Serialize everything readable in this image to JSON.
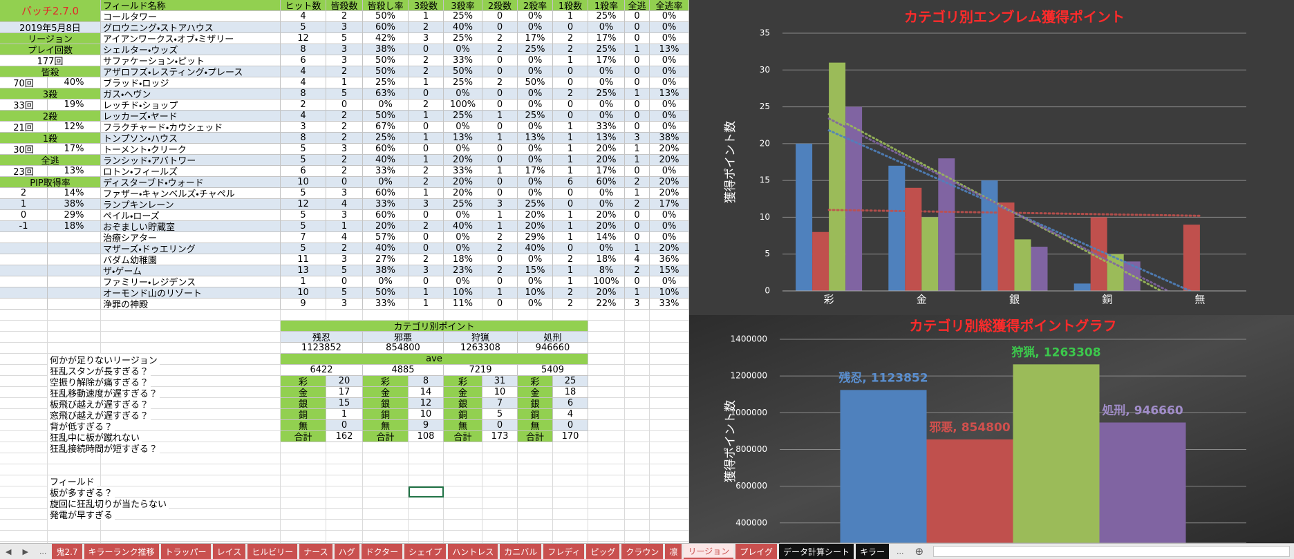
{
  "sidebar": [
    [
      "パッチ2.7.0"
    ],
    [
      "2019年5月8日"
    ],
    [
      "リージョン"
    ],
    [
      "プレイ回数"
    ],
    [
      "177回"
    ],
    [
      "皆殺"
    ],
    [
      "70回",
      "40%"
    ],
    [
      "3殺"
    ],
    [
      "33回",
      "19%"
    ],
    [
      "2殺"
    ],
    [
      "21回",
      "12%"
    ],
    [
      "1殺"
    ],
    [
      "30回",
      "17%"
    ],
    [
      "全逃"
    ],
    [
      "23回",
      "13%"
    ],
    [
      "PIP取得率"
    ],
    [
      "2",
      "14%"
    ],
    [
      "1",
      "38%"
    ],
    [
      "0",
      "29%"
    ],
    [
      "-1",
      "18%"
    ]
  ],
  "field_table": {
    "header": [
      "フィールド名称",
      "ヒット数",
      "皆殺数",
      "皆殺し率",
      "3殺数",
      "3殺率",
      "2殺数",
      "2殺率",
      "1殺数",
      "1殺率",
      "全逃",
      "全逃率"
    ],
    "rows": [
      [
        "コールタワー",
        4,
        2,
        "50%",
        1,
        "25%",
        0,
        "0%",
        1,
        "25%",
        0,
        "0%"
      ],
      [
        "グロウニング・ストアハウス",
        5,
        3,
        "60%",
        2,
        "40%",
        0,
        "0%",
        0,
        "0%",
        0,
        "0%"
      ],
      [
        "アイアンワークス・オブ・ミザリー",
        12,
        5,
        "42%",
        3,
        "25%",
        2,
        "17%",
        2,
        "17%",
        0,
        "0%"
      ],
      [
        "シェルター・ウッズ",
        8,
        3,
        "38%",
        0,
        "0%",
        2,
        "25%",
        2,
        "25%",
        1,
        "13%"
      ],
      [
        "サファケーション・ピット",
        6,
        3,
        "50%",
        2,
        "33%",
        0,
        "0%",
        1,
        "17%",
        0,
        "0%"
      ],
      [
        "アザロフズ・レスティング・プレース",
        4,
        2,
        "50%",
        2,
        "50%",
        0,
        "0%",
        0,
        "0%",
        0,
        "0%"
      ],
      [
        "ブラッド・ロッジ",
        4,
        1,
        "25%",
        1,
        "25%",
        2,
        "50%",
        0,
        "0%",
        0,
        "0%"
      ],
      [
        "ガス・ヘヴン",
        8,
        5,
        "63%",
        0,
        "0%",
        0,
        "0%",
        2,
        "25%",
        1,
        "13%"
      ],
      [
        "レッチド・ショップ",
        2,
        0,
        "0%",
        2,
        "100%",
        0,
        "0%",
        0,
        "0%",
        0,
        "0%"
      ],
      [
        "レッカーズ・ヤード",
        4,
        2,
        "50%",
        1,
        "25%",
        1,
        "25%",
        0,
        "0%",
        0,
        "0%"
      ],
      [
        "フラクチャード・カウシェッド",
        3,
        2,
        "67%",
        0,
        "0%",
        0,
        "0%",
        1,
        "33%",
        0,
        "0%"
      ],
      [
        "トンプソン・ハウス",
        8,
        2,
        "25%",
        1,
        "13%",
        1,
        "13%",
        1,
        "13%",
        3,
        "38%"
      ],
      [
        "トーメント・クリーク",
        5,
        3,
        "60%",
        0,
        "0%",
        0,
        "0%",
        1,
        "20%",
        1,
        "20%"
      ],
      [
        "ランシッド・アバトワー",
        5,
        2,
        "40%",
        1,
        "20%",
        0,
        "0%",
        1,
        "20%",
        1,
        "20%"
      ],
      [
        "ロトン・フィールズ",
        6,
        2,
        "33%",
        2,
        "33%",
        1,
        "17%",
        1,
        "17%",
        0,
        "0%"
      ],
      [
        "ディスターブド・ウォード",
        10,
        0,
        "0%",
        2,
        "20%",
        0,
        "0%",
        6,
        "60%",
        2,
        "20%"
      ],
      [
        "ファザー・キャンベルズ・チャペル",
        5,
        3,
        "60%",
        1,
        "20%",
        0,
        "0%",
        0,
        "0%",
        1,
        "20%"
      ],
      [
        "ランプキンレーン",
        12,
        4,
        "33%",
        3,
        "25%",
        3,
        "25%",
        0,
        "0%",
        2,
        "17%"
      ],
      [
        "ペイル・ローズ",
        5,
        3,
        "60%",
        0,
        "0%",
        1,
        "20%",
        1,
        "20%",
        0,
        "0%"
      ],
      [
        "おぞましい貯蔵室",
        5,
        1,
        "20%",
        2,
        "40%",
        1,
        "20%",
        1,
        "20%",
        0,
        "0%"
      ],
      [
        "治療シアター",
        7,
        4,
        "57%",
        0,
        "0%",
        2,
        "29%",
        1,
        "14%",
        0,
        "0%"
      ],
      [
        "マザーズ・ドゥエリング",
        5,
        2,
        "40%",
        0,
        "0%",
        2,
        "40%",
        0,
        "0%",
        1,
        "20%"
      ],
      [
        "バダム幼稚園",
        11,
        3,
        "27%",
        2,
        "18%",
        0,
        "0%",
        2,
        "18%",
        4,
        "36%"
      ],
      [
        "ザ・ゲーム",
        13,
        5,
        "38%",
        3,
        "23%",
        2,
        "15%",
        1,
        "8%",
        2,
        "15%"
      ],
      [
        "ファミリー・レジデンス",
        1,
        0,
        "0%",
        0,
        "0%",
        0,
        "0%",
        1,
        "100%",
        0,
        "0%"
      ],
      [
        "オーモンド山のリゾート",
        10,
        5,
        "50%",
        1,
        "10%",
        1,
        "10%",
        2,
        "20%",
        1,
        "10%"
      ],
      [
        "浄罪の神殿",
        9,
        3,
        "33%",
        1,
        "11%",
        0,
        "0%",
        2,
        "22%",
        3,
        "33%"
      ]
    ]
  },
  "category_points": {
    "title": "カテゴリ別ポイント",
    "names": [
      "残忍",
      "邪悪",
      "狩猟",
      "処刑"
    ],
    "totals": [
      1123852,
      854800,
      1263308,
      946660
    ],
    "ave_label": "ave",
    "averages": [
      6422,
      4885,
      7219,
      5409
    ],
    "breakdown": [
      {
        "rank": "彩",
        "values": [
          20,
          8,
          31,
          25
        ]
      },
      {
        "rank": "金",
        "values": [
          17,
          14,
          10,
          18
        ]
      },
      {
        "rank": "銀",
        "values": [
          15,
          12,
          7,
          6
        ]
      },
      {
        "rank": "銅",
        "values": [
          1,
          10,
          5,
          4
        ]
      },
      {
        "rank": "無",
        "values": [
          0,
          9,
          0,
          0
        ]
      },
      {
        "rank": "合計",
        "values": [
          162,
          108,
          173,
          170
        ]
      }
    ]
  },
  "notes": {
    "region_title": "何かが足りないリージョン",
    "region_items": [
      "狂乱スタンが長すぎる？",
      "空振り解除が痛すぎる？",
      "狂乱移動速度が遅すぎる？",
      "板飛び越えが遅すぎる？",
      "窓飛び越えが遅すぎる？",
      "背が低すぎる？",
      "狂乱中に板が蹴れない",
      "狂乱接続時間が短すぎる？"
    ],
    "field_title": "フィールド",
    "field_items": [
      "板が多すぎる？",
      "旋回に狂乱切りが当たらない",
      "発電が早すぎる"
    ]
  },
  "chart_data": [
    {
      "type": "bar",
      "title": "カテゴリ別エンブレム獲得ポイント",
      "y_label": "獲得ポイント数",
      "categories": [
        "彩",
        "金",
        "銀",
        "銅",
        "無"
      ],
      "series": [
        {
          "color": "#4f81bd",
          "values": [
            20,
            17,
            15,
            1,
            0
          ]
        },
        {
          "color": "#c0504d",
          "values": [
            8,
            14,
            12,
            10,
            9
          ]
        },
        {
          "color": "#9bbb59",
          "values": [
            31,
            10,
            7,
            5,
            0
          ]
        },
        {
          "color": "#8064a2",
          "values": [
            25,
            18,
            6,
            4,
            0
          ]
        }
      ],
      "ylim": [
        0,
        35
      ],
      "yticks": [
        0,
        5,
        10,
        15,
        20,
        25,
        30,
        35
      ],
      "grid": true,
      "trendline": true
    },
    {
      "type": "bar",
      "title": "カテゴリ別総獲得ポイントグラフ",
      "y_label": "獲得ポイント数",
      "categories": [
        null
      ],
      "series": [
        {
          "color": "#4f81bd",
          "label_color": "#5a8fd0",
          "values": [
            1123852
          ],
          "value_labels": [
            "残忍, 1123852"
          ]
        },
        {
          "color": "#c0504d",
          "label_color": "#d0504d",
          "values": [
            854800
          ],
          "value_labels": [
            "邪悪, 854800"
          ]
        },
        {
          "color": "#9bbb59",
          "label_color": "#3cc84c",
          "values": [
            1263308
          ],
          "value_labels": [
            "狩猟, 1263308"
          ]
        },
        {
          "color": "#8064a2",
          "label_color": "#a08cc8",
          "values": [
            946660
          ],
          "value_labels": [
            "処刑, 946660"
          ]
        }
      ],
      "ylim": [
        290000,
        1400000
      ],
      "yticks": [
        400000,
        600000,
        800000,
        1000000,
        1200000,
        1400000
      ],
      "grid": true
    }
  ],
  "sheet_tabs": {
    "more": "...",
    "tabs": [
      {
        "label": "鬼2.7",
        "color": "#c9504f"
      },
      {
        "label": "キラーランク推移",
        "color": "#c9504f"
      },
      {
        "label": "トラッパー",
        "color": "#c9504f"
      },
      {
        "label": "レイス",
        "color": "#c9504f"
      },
      {
        "label": "ヒルビリー",
        "color": "#c9504f"
      },
      {
        "label": "ナース",
        "color": "#c9504f"
      },
      {
        "label": "ハグ",
        "color": "#c9504f"
      },
      {
        "label": "ドクター",
        "color": "#c9504f"
      },
      {
        "label": "シェイプ",
        "color": "#c9504f"
      },
      {
        "label": "ハントレス",
        "color": "#c9504f"
      },
      {
        "label": "カニバル",
        "color": "#c9504f"
      },
      {
        "label": "フレディ",
        "color": "#c9504f"
      },
      {
        "label": "ピッグ",
        "color": "#c9504f"
      },
      {
        "label": "クラウン",
        "color": "#c9504f"
      },
      {
        "label": "凛",
        "color": "#c9504f"
      },
      {
        "label": "リージョン",
        "color": "#c9504f",
        "active": true
      },
      {
        "label": "プレイグ",
        "color": "#c9504f"
      },
      {
        "label": "データ計算シート",
        "color": "#111111"
      },
      {
        "label": "キラー",
        "color": "#111111"
      }
    ]
  }
}
